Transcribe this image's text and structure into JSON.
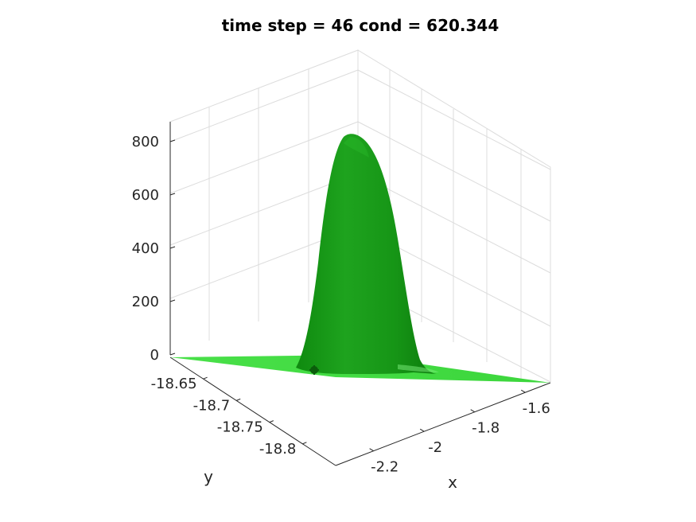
{
  "chart_data": {
    "type": "surface",
    "title": "time step = 46 cond = 620.344",
    "xlabel": "x",
    "ylabel": "y",
    "zlabel": "",
    "x_ticks": [
      -2.2,
      -2,
      -1.8,
      -1.6
    ],
    "x_tick_labels": [
      "-2.2",
      "-2",
      "-1.8",
      "-1.6"
    ],
    "y_ticks": [
      -18.8,
      -18.75,
      -18.7,
      -18.65
    ],
    "y_tick_labels": [
      "-18.8",
      "-18.75",
      "-18.7",
      "-18.65"
    ],
    "z_ticks": [
      0,
      200,
      400,
      600,
      800
    ],
    "z_tick_labels": [
      "0",
      "200",
      "400",
      "600",
      "800"
    ],
    "xlim": [
      -2.35,
      -1.5
    ],
    "ylim": [
      -18.85,
      -18.6
    ],
    "zlim": [
      0,
      900
    ],
    "grid": true,
    "surface_color": "#1a9f1a",
    "surface_base_color": "#3ddc3d",
    "peak": {
      "z": 820
    },
    "marker_color": "#0b5d0b"
  }
}
